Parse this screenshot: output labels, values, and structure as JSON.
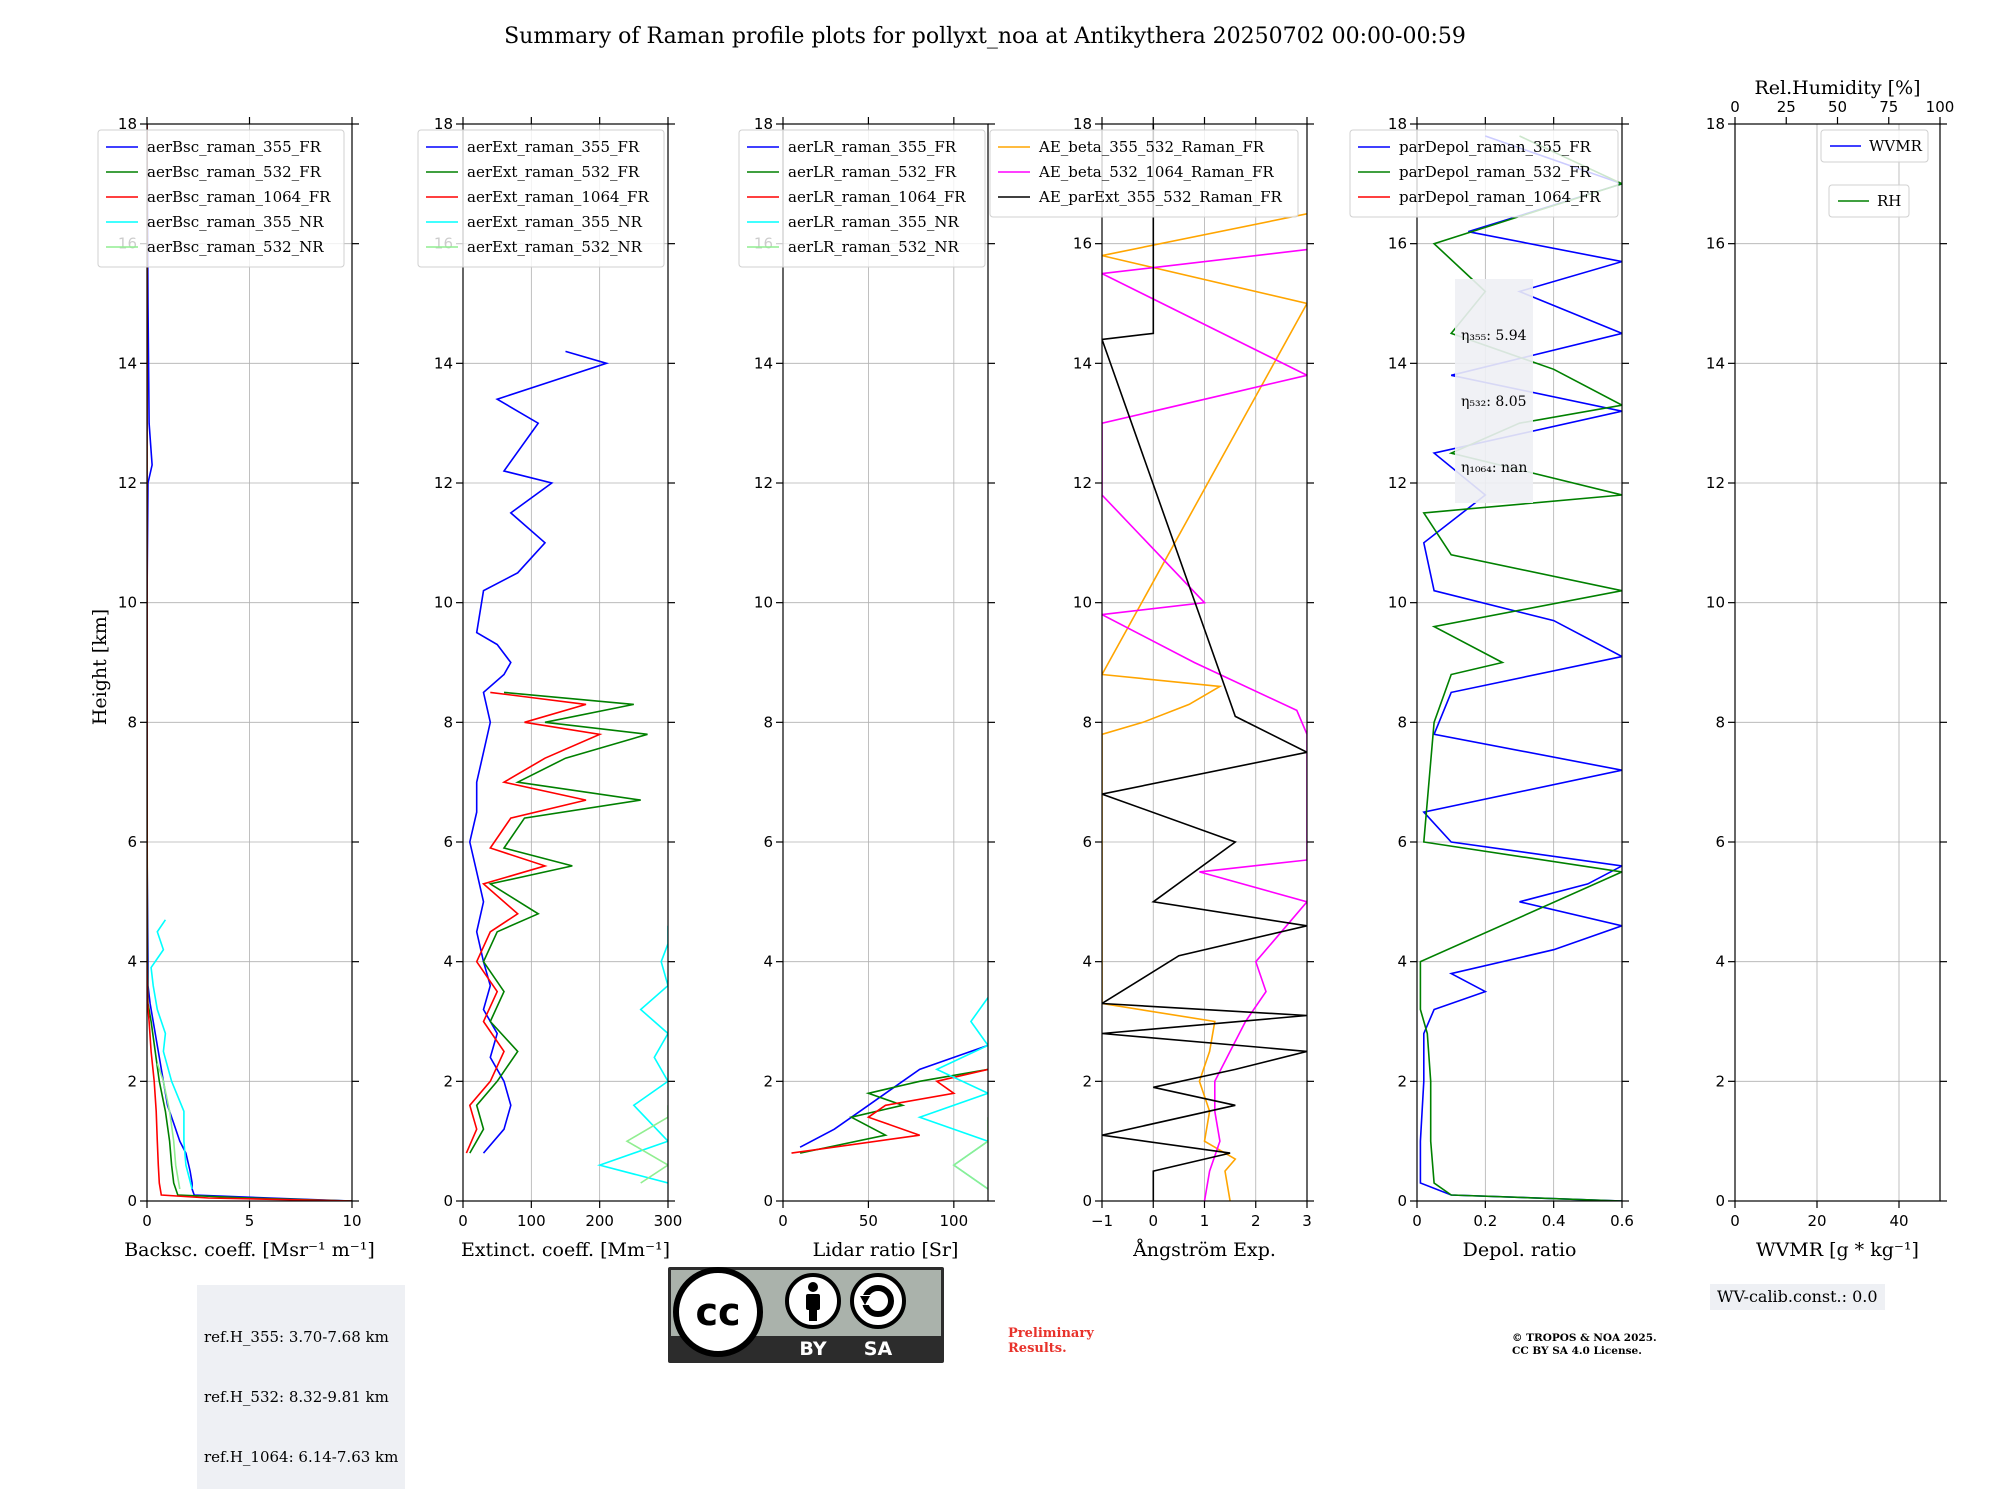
{
  "figure": {
    "title": "Summary of Raman profile plots for pollyxt_noa at Antikythera 20250702 00:00-00:59",
    "height_label": "Height [km]"
  },
  "chart_data": [
    {
      "type": "line",
      "id": "bsc",
      "xlabel": "Backsc. coeff. [Msr⁻¹ m⁻¹]",
      "xlim": [
        0,
        10
      ],
      "ylim": [
        0,
        18
      ],
      "xticks": [
        0,
        5,
        10
      ],
      "yticks": [
        0,
        2,
        4,
        6,
        8,
        10,
        12,
        14,
        16,
        18
      ],
      "grid": true,
      "legend": "top-left",
      "series": [
        {
          "name": "aerBsc_raman_355_FR",
          "color": "#0000ff",
          "y": [
            0.0,
            0.05,
            0.1,
            0.2,
            0.3,
            0.5,
            0.8,
            1.0,
            1.3,
            1.6,
            2.0,
            2.5,
            3.0,
            3.3,
            3.6,
            4.0,
            6.0,
            8.0,
            10.0,
            12.0,
            12.3,
            13.0,
            15.0,
            18.0
          ],
          "x": [
            10.0,
            6.0,
            2.3,
            2.2,
            2.2,
            2.1,
            1.9,
            1.6,
            1.3,
            1.0,
            0.8,
            0.55,
            0.3,
            0.15,
            0.05,
            0.05,
            0.0,
            0.0,
            0.0,
            0.05,
            0.25,
            0.1,
            0.05,
            0.0
          ]
        },
        {
          "name": "aerBsc_raman_532_FR",
          "color": "#008000",
          "y": [
            0.0,
            0.05,
            0.1,
            0.3,
            0.6,
            1.0,
            1.5,
            2.0,
            2.5,
            3.0,
            3.3,
            4.0,
            8.0,
            12.0,
            18.0
          ],
          "x": [
            10.0,
            5.0,
            1.5,
            1.3,
            1.2,
            1.1,
            0.9,
            0.6,
            0.4,
            0.2,
            0.05,
            0.02,
            0.0,
            0.0,
            0.0
          ]
        },
        {
          "name": "aerBsc_raman_1064_FR",
          "color": "#ff0000",
          "y": [
            0.0,
            0.05,
            0.1,
            0.3,
            0.6,
            1.0,
            1.5,
            2.0,
            2.5,
            3.0,
            3.3,
            4.0,
            8.0,
            18.0
          ],
          "x": [
            10.0,
            3.0,
            0.7,
            0.6,
            0.55,
            0.5,
            0.45,
            0.35,
            0.2,
            0.1,
            0.03,
            0.0,
            0.0,
            0.0
          ]
        },
        {
          "name": "aerBsc_raman_355_NR",
          "color": "#00ffff",
          "y": [
            0.2,
            0.6,
            1.0,
            1.5,
            2.0,
            2.5,
            2.8,
            3.2,
            3.6,
            3.9,
            4.2,
            4.5,
            4.7
          ],
          "x": [
            2.2,
            1.9,
            1.8,
            1.8,
            1.2,
            0.8,
            0.9,
            0.5,
            0.3,
            0.2,
            0.8,
            0.5,
            0.9
          ]
        },
        {
          "name": "aerBsc_raman_532_NR",
          "color": "#90ee90",
          "y": [
            0.2,
            0.6,
            1.0,
            1.5,
            2.0,
            2.3
          ],
          "x": [
            1.6,
            1.4,
            1.3,
            1.1,
            0.8,
            0.5
          ]
        }
      ]
    },
    {
      "type": "line",
      "id": "ext",
      "xlabel": "Extinct. coeff. [Mm⁻¹]",
      "xlim": [
        0,
        300
      ],
      "ylim": [
        0,
        18
      ],
      "xticks": [
        0,
        100,
        200,
        300
      ],
      "yticks": [
        0,
        2,
        4,
        6,
        8,
        10,
        12,
        14,
        16,
        18
      ],
      "grid": true,
      "legend": "top-left",
      "series": [
        {
          "name": "aerExt_raman_355_FR",
          "color": "#0000ff",
          "y": [
            0.8,
            1.2,
            1.6,
            2.0,
            2.4,
            2.8,
            3.2,
            3.6,
            4.0,
            4.5,
            5.0,
            5.5,
            6.0,
            6.5,
            7.0,
            7.5,
            8.0,
            8.5,
            8.8,
            9.0,
            9.3,
            9.5,
            10.2,
            10.5,
            11.0,
            11.5,
            12.0,
            12.2,
            13.0,
            13.4,
            14.0,
            14.2
          ],
          "x": [
            30,
            60,
            70,
            60,
            40,
            50,
            30,
            40,
            30,
            20,
            30,
            20,
            10,
            20,
            20,
            30,
            40,
            30,
            60,
            70,
            50,
            20,
            30,
            80,
            120,
            70,
            130,
            60,
            110,
            50,
            210,
            150
          ]
        },
        {
          "name": "aerExt_raman_532_FR",
          "color": "#008000",
          "y": [
            0.8,
            1.2,
            1.6,
            2.0,
            2.5,
            3.0,
            3.5,
            4.0,
            4.5,
            4.8,
            5.3,
            5.6,
            5.9,
            6.4,
            6.7,
            7.0,
            7.4,
            7.8,
            8.0,
            8.3,
            8.5
          ],
          "x": [
            10,
            30,
            20,
            50,
            80,
            40,
            60,
            30,
            50,
            110,
            40,
            160,
            60,
            90,
            260,
            80,
            150,
            270,
            120,
            250,
            60
          ]
        },
        {
          "name": "aerExt_raman_1064_FR",
          "color": "#ff0000",
          "y": [
            0.8,
            1.2,
            1.6,
            2.0,
            2.5,
            3.0,
            3.5,
            4.0,
            4.5,
            4.8,
            5.3,
            5.6,
            5.9,
            6.4,
            6.7,
            7.0,
            7.4,
            7.8,
            8.0,
            8.3,
            8.5
          ],
          "x": [
            5,
            20,
            10,
            40,
            60,
            30,
            50,
            20,
            40,
            80,
            30,
            120,
            40,
            70,
            180,
            60,
            120,
            200,
            90,
            180,
            40
          ]
        },
        {
          "name": "aerExt_raman_355_NR",
          "color": "#00ffff",
          "y": [
            0.3,
            0.6,
            1.0,
            1.6,
            2.0,
            2.4,
            2.8,
            3.2,
            3.6,
            4.0,
            4.3,
            4.6
          ],
          "x": [
            300,
            200,
            300,
            250,
            300,
            280,
            300,
            260,
            300,
            290,
            300,
            300
          ]
        },
        {
          "name": "aerExt_raman_532_NR",
          "color": "#90ee90",
          "y": [
            0.3,
            0.6,
            1.0,
            1.4,
            1.6
          ],
          "x": [
            260,
            300,
            240,
            300,
            300
          ]
        }
      ]
    },
    {
      "type": "line",
      "id": "lr",
      "xlabel": "Lidar ratio [Sr]",
      "xlim": [
        0,
        120
      ],
      "ylim": [
        0,
        18
      ],
      "xticks": [
        0,
        50,
        100
      ],
      "yticks": [
        0,
        2,
        4,
        6,
        8,
        10,
        12,
        14,
        16,
        18
      ],
      "grid": true,
      "legend": "top-left",
      "series": [
        {
          "name": "aerLR_raman_355_FR",
          "color": "#0000ff",
          "y": [
            0.9,
            1.2,
            1.5,
            1.8,
            2.0,
            2.2,
            2.4,
            2.6
          ],
          "x": [
            10,
            30,
            45,
            60,
            70,
            80,
            100,
            120
          ]
        },
        {
          "name": "aerLR_raman_532_FR",
          "color": "#008000",
          "y": [
            0.8,
            1.1,
            1.4,
            1.6,
            1.8,
            2.0,
            2.2
          ],
          "x": [
            10,
            60,
            40,
            70,
            50,
            80,
            120
          ]
        },
        {
          "name": "aerLR_raman_1064_FR",
          "color": "#ff0000",
          "y": [
            0.8,
            1.1,
            1.4,
            1.6,
            1.8,
            2.0,
            2.2
          ],
          "x": [
            5,
            80,
            50,
            60,
            100,
            90,
            120
          ]
        },
        {
          "name": "aerLR_raman_355_NR",
          "color": "#00ffff",
          "y": [
            0.2,
            0.6,
            1.0,
            1.4,
            1.8,
            2.2,
            2.6,
            3.0,
            3.4
          ],
          "x": [
            120,
            100,
            120,
            80,
            120,
            90,
            120,
            110,
            120
          ]
        },
        {
          "name": "aerLR_raman_532_NR",
          "color": "#90ee90",
          "y": [
            0.2,
            0.6,
            1.0,
            1.4
          ],
          "x": [
            120,
            100,
            120,
            120
          ]
        }
      ]
    },
    {
      "type": "line",
      "id": "ae",
      "xlabel": "Ångström Exp.",
      "xlim": [
        -1,
        3
      ],
      "ylim": [
        0,
        18
      ],
      "xticks": [
        -1,
        0,
        1,
        2,
        3
      ],
      "yticks": [
        0,
        2,
        4,
        6,
        8,
        10,
        12,
        14,
        16,
        18
      ],
      "grid": true,
      "legend": "top-right",
      "series": [
        {
          "name": "AE_beta_355_532_Raman_FR",
          "color": "#ffa500",
          "y": [
            0.0,
            0.5,
            0.7,
            1.0,
            1.5,
            2.0,
            2.5,
            3.0,
            3.3,
            7.8,
            8.0,
            8.3,
            8.6,
            8.8,
            15.0,
            15.8,
            16.5
          ],
          "x": [
            1.5,
            1.4,
            1.6,
            1.0,
            1.1,
            0.9,
            1.1,
            1.2,
            -1.0,
            -1.0,
            -0.2,
            0.7,
            1.3,
            -1.0,
            3.0,
            -1.0,
            3.0
          ]
        },
        {
          "name": "AE_beta_532_1064_Raman_FR",
          "color": "#ff00ff",
          "y": [
            0.0,
            0.5,
            1.0,
            1.5,
            2.0,
            2.5,
            3.0,
            3.5,
            4.0,
            4.5,
            5.0,
            5.5,
            5.7,
            7.8,
            8.2,
            9.0,
            9.8,
            10.0,
            11.8,
            13.0,
            13.5,
            13.8,
            15.5,
            15.9
          ],
          "x": [
            1.0,
            1.1,
            1.3,
            1.2,
            1.2,
            1.5,
            1.8,
            2.2,
            2.0,
            2.5,
            3.0,
            0.9,
            3.0,
            3.0,
            2.8,
            0.8,
            -1.0,
            1.0,
            -1.0,
            -1.0,
            1.5,
            3.0,
            -1.0,
            3.0
          ]
        },
        {
          "name": "AE_parExt_355_532_Raman_FR",
          "color": "#000000",
          "y": [
            0.0,
            0.5,
            0.8,
            1.1,
            1.6,
            1.9,
            2.2,
            2.5,
            2.8,
            3.1,
            3.3,
            4.1,
            4.6,
            5.0,
            6.0,
            6.8,
            7.5,
            8.1,
            14.4,
            14.5,
            18.0
          ],
          "x": [
            0.0,
            0.0,
            1.5,
            -1.0,
            1.6,
            0.0,
            1.6,
            3.0,
            -1.0,
            3.0,
            -1.0,
            0.5,
            3.0,
            0.0,
            1.6,
            -1.0,
            3.0,
            1.6,
            -1.0,
            0.0,
            0.0
          ]
        }
      ]
    },
    {
      "type": "line",
      "id": "depol",
      "xlabel": "Depol. ratio",
      "xlim": [
        0,
        0.6
      ],
      "ylim": [
        0,
        18
      ],
      "xticks": [
        0.0,
        0.2,
        0.4,
        0.6
      ],
      "yticks": [
        0,
        2,
        4,
        6,
        8,
        10,
        12,
        14,
        16,
        18
      ],
      "grid": true,
      "legend": "top-right",
      "series": [
        {
          "name": "parDepol_raman_355_FR",
          "color": "#0000ff",
          "y": [
            0.0,
            0.1,
            0.3,
            1.0,
            2.0,
            2.8,
            3.2,
            3.5,
            3.8,
            4.2,
            4.6,
            5.0,
            5.3,
            5.6,
            6.0,
            6.5,
            7.2,
            7.8,
            8.5,
            9.1,
            9.7,
            10.2,
            11.0,
            11.8,
            12.5,
            13.2,
            13.8,
            14.5,
            15.2,
            15.7,
            16.2,
            17.0,
            17.8
          ],
          "x": [
            0.6,
            0.1,
            0.01,
            0.01,
            0.02,
            0.02,
            0.05,
            0.2,
            0.1,
            0.4,
            0.6,
            0.3,
            0.5,
            0.6,
            0.1,
            0.02,
            0.6,
            0.05,
            0.1,
            0.6,
            0.4,
            0.05,
            0.02,
            0.2,
            0.05,
            0.6,
            0.1,
            0.6,
            0.3,
            0.6,
            0.15,
            0.6,
            0.2
          ]
        },
        {
          "name": "parDepol_raman_532_FR",
          "color": "#008000",
          "y": [
            0.0,
            0.1,
            0.3,
            1.0,
            2.0,
            2.8,
            3.2,
            4.0,
            5.5,
            6.0,
            8.0,
            8.8,
            9.0,
            9.6,
            10.2,
            10.8,
            11.5,
            11.8,
            12.5,
            13.0,
            13.3,
            13.9,
            14.5,
            15.2,
            16.0,
            17.0,
            17.8
          ],
          "x": [
            0.6,
            0.1,
            0.05,
            0.04,
            0.04,
            0.03,
            0.01,
            0.01,
            0.6,
            0.02,
            0.05,
            0.1,
            0.25,
            0.05,
            0.6,
            0.1,
            0.02,
            0.6,
            0.1,
            0.3,
            0.6,
            0.4,
            0.1,
            0.2,
            0.05,
            0.6,
            0.3
          ]
        },
        {
          "name": "parDepol_raman_1064_FR",
          "color": "#ff0000",
          "y": [],
          "x": []
        }
      ],
      "annotation": [
        {
          "label": "η₃₅₅",
          "value": ": 5.94"
        },
        {
          "label": "η₅₃₂",
          "value": ": 8.05"
        },
        {
          "label": "η₁₀₆₄",
          "value": ": nan"
        }
      ]
    },
    {
      "type": "line",
      "id": "wv",
      "xlabel": "WVMR [g * kg⁻¹]",
      "top_xlabel": "Rel.Humidity [%]",
      "xlim": [
        0,
        50
      ],
      "top_xlim": [
        0,
        100
      ],
      "ylim": [
        0,
        18
      ],
      "xticks": [
        0,
        20,
        40
      ],
      "top_xticks": [
        0,
        25,
        50,
        75,
        100
      ],
      "yticks": [
        0,
        2,
        4,
        6,
        8,
        10,
        12,
        14,
        16,
        18
      ],
      "grid": true,
      "legend": "top-right",
      "series": [
        {
          "name": "WVMR",
          "color": "#0000ff",
          "y": [],
          "x": []
        },
        {
          "name": "RH",
          "color": "#008000",
          "y": [],
          "x": []
        }
      ],
      "annotation": "WV-calib.const.: 0.0"
    }
  ],
  "footer": {
    "ref_heights": [
      "ref.H_355: 3.70-7.68 km",
      "ref.H_532: 8.32-9.81 km",
      "ref.H_1064: 6.14-7.63 km"
    ],
    "preliminary": [
      "Preliminary",
      "Results."
    ],
    "copyright": [
      "© TROPOS & NOA 2025.",
      "CC BY SA 4.0 License."
    ],
    "license_badge": {
      "by": "BY",
      "sa": "SA",
      "cc": "cc"
    }
  }
}
